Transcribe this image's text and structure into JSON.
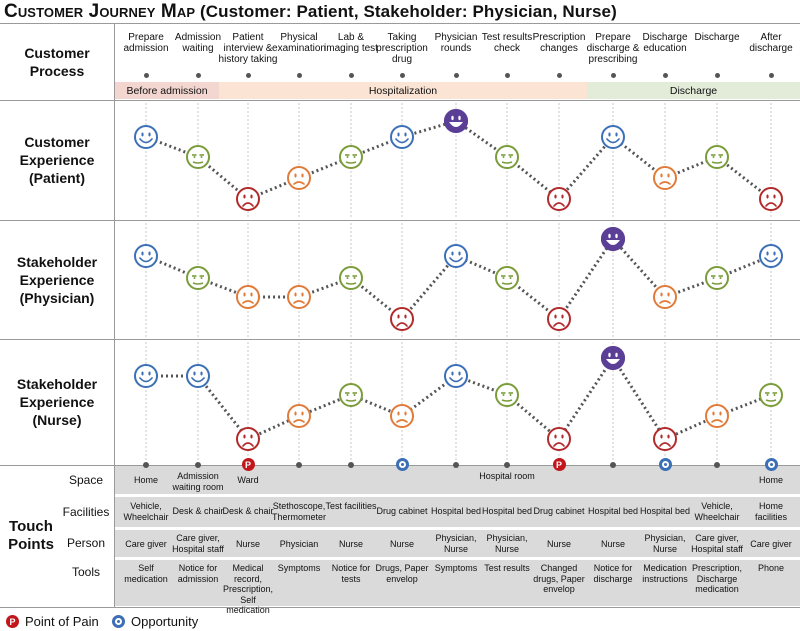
{
  "title": {
    "prefix": "Customer Journey Map",
    "suffix": "(Customer: Patient, Stakeholder: Physician, Nurse)"
  },
  "row_labels": {
    "process": "Customer\nProcess",
    "patient": "Customer\nExperience\n(Patient)",
    "physician": "Stakeholder\nExperience\n(Physician)",
    "nurse": "Stakeholder\nExperience\n(Nurse)",
    "touch_points": "Touch\nPoints"
  },
  "steps": [
    "Prepare admission",
    "Admission waiting",
    "Patient interview & history taking",
    "Physical examination",
    "Lab & imaging test",
    "Taking prescription drug",
    "Physician rounds",
    "Test results check",
    "Prescription changes",
    "Prepare discharge & prescribing",
    "Discharge education",
    "Discharge",
    "After discharge"
  ],
  "phases": [
    {
      "label": "Before admission",
      "color": "#f3d6d0"
    },
    {
      "label": "Hospitalization",
      "color": "#fbe4d4"
    },
    {
      "label": "Discharge",
      "color": "#e3ecd8"
    }
  ],
  "colors": {
    "happy": "#3b6fb6",
    "neutral": "#7a9c3a",
    "slight": "#e07b39",
    "sad": "#b22a2a",
    "delighted": "#5b3e96",
    "pain": "#c0161c",
    "opportunity": "#3b6fb6"
  },
  "emotion_scale": [
    "sad",
    "slight",
    "neutral",
    "happy",
    "delighted"
  ],
  "experiences": {
    "patient": [
      "happy",
      "neutral",
      "sad",
      "slight",
      "neutral",
      "happy",
      "delighted",
      "neutral",
      "sad",
      "happy",
      "slight",
      "neutral",
      "sad"
    ],
    "physician": [
      "happy",
      "neutral",
      "slight",
      "slight",
      "neutral",
      "sad",
      "happy",
      "neutral",
      "sad",
      "delighted",
      "slight",
      "neutral",
      "happy"
    ],
    "nurse": [
      "happy",
      "happy",
      "sad",
      "slight",
      "neutral",
      "slight",
      "happy",
      "neutral",
      "sad",
      "delighted",
      "sad",
      "slight",
      "neutral"
    ]
  },
  "touch_point_labels": {
    "space": "Space",
    "facilities": "Facilities",
    "person": "Person",
    "tools": "Tools"
  },
  "space_markers": [
    "dot",
    "dot",
    "pain",
    "dot",
    "dot",
    "opportunity",
    "dot",
    "dot",
    "pain",
    "dot",
    "opportunity",
    "dot",
    "opportunity"
  ],
  "space": [
    {
      "label": "Home",
      "at": 0
    },
    {
      "label": "Admission waiting room",
      "at": 1
    },
    {
      "label": "Ward",
      "at": 2
    },
    {
      "label": "Hospital room",
      "at": 7
    },
    {
      "label": "Home",
      "at": 12
    }
  ],
  "facilities": [
    "Vehicle, Wheelchair",
    "Desk & chair",
    "Desk & chair",
    "Stethoscope, Thermometer",
    "Test facilities",
    "Drug cabinet",
    "Hospital bed",
    "Hospital bed",
    "Drug cabinet",
    "Hospital bed",
    "Hospital bed",
    "Vehicle, Wheelchair",
    "Home facilities"
  ],
  "person": [
    "Care giver",
    "Care giver, Hospital staff",
    "Nurse",
    "Physician",
    "Nurse",
    "Nurse",
    "Physician, Nurse",
    "Physician, Nurse",
    "Nurse",
    "Nurse",
    "Physician, Nurse",
    "Care giver, Hospital staff",
    "Care giver"
  ],
  "tools": [
    "Self medication",
    "Notice for admission",
    "Medical record, Prescription, Self medication",
    "Symptoms",
    "Notice for tests",
    "Drugs, Paper envelop",
    "Symptoms",
    "Test results",
    "Changed drugs, Paper envelop",
    "Notice for discharge",
    "Medication instructions",
    "Prescription, Discharge medication",
    "Phone"
  ],
  "legend": {
    "pain_mark": "P",
    "pain": "Point of Pain",
    "opportunity": "Opportunity"
  }
}
